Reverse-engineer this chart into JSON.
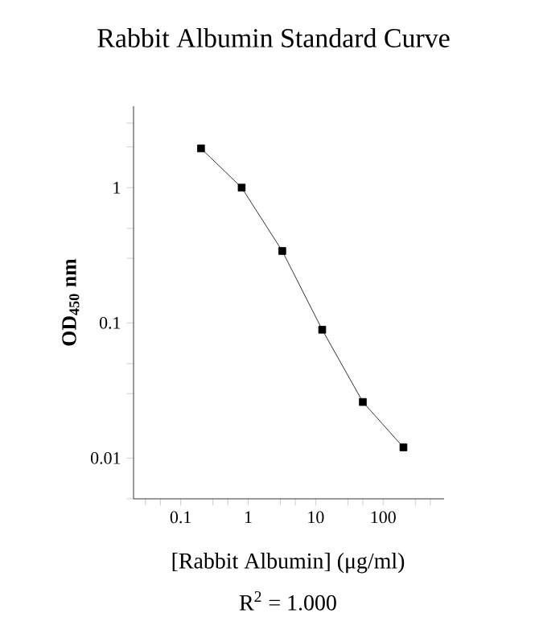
{
  "chart_data": {
    "type": "line",
    "title": "Rabbit Albumin Standard Curve",
    "xlabel": "[Rabbit Albumin] (μg/ml)",
    "ylabel": "OD$_{450}$ nm",
    "annotations": [
      "R$^{2}$ = 1.000"
    ],
    "series": [
      {
        "color": "#000000",
        "x": [
          0.2,
          0.8,
          3.2,
          12.5,
          50,
          200
        ],
        "values": [
          1.95,
          1.0,
          0.34,
          0.089,
          0.026,
          0.012
        ]
      }
    ],
    "log": "xy",
    "marker": "square",
    "line_style": "solid",
    "xlim": [
      0.02,
      800
    ],
    "ylim": [
      0.005,
      4
    ],
    "xticks": [
      {
        "value": 0.03,
        "label": null
      },
      {
        "value": 0.05,
        "label": null
      },
      0.1,
      {
        "value": 0.3,
        "label": null
      },
      {
        "value": 0.5,
        "label": null
      },
      1,
      {
        "value": 3,
        "label": null
      },
      {
        "value": 5,
        "label": null
      },
      10,
      {
        "value": 30,
        "label": null
      },
      {
        "value": 50,
        "label": null
      },
      100,
      {
        "value": 300,
        "label": null
      },
      {
        "value": 500,
        "label": null
      }
    ],
    "yticks": [
      {
        "value": 0.005,
        "label": null
      },
      {
        "value": 0.03,
        "label": null
      },
      {
        "value": 0.05,
        "label": null
      },
      0.01,
      0.1,
      {
        "value": 0.3,
        "label": null
      },
      {
        "value": 0.5,
        "label": null
      },
      1,
      {
        "value": 2,
        "label": null
      },
      {
        "value": 3,
        "label": null
      }
    ]
  }
}
